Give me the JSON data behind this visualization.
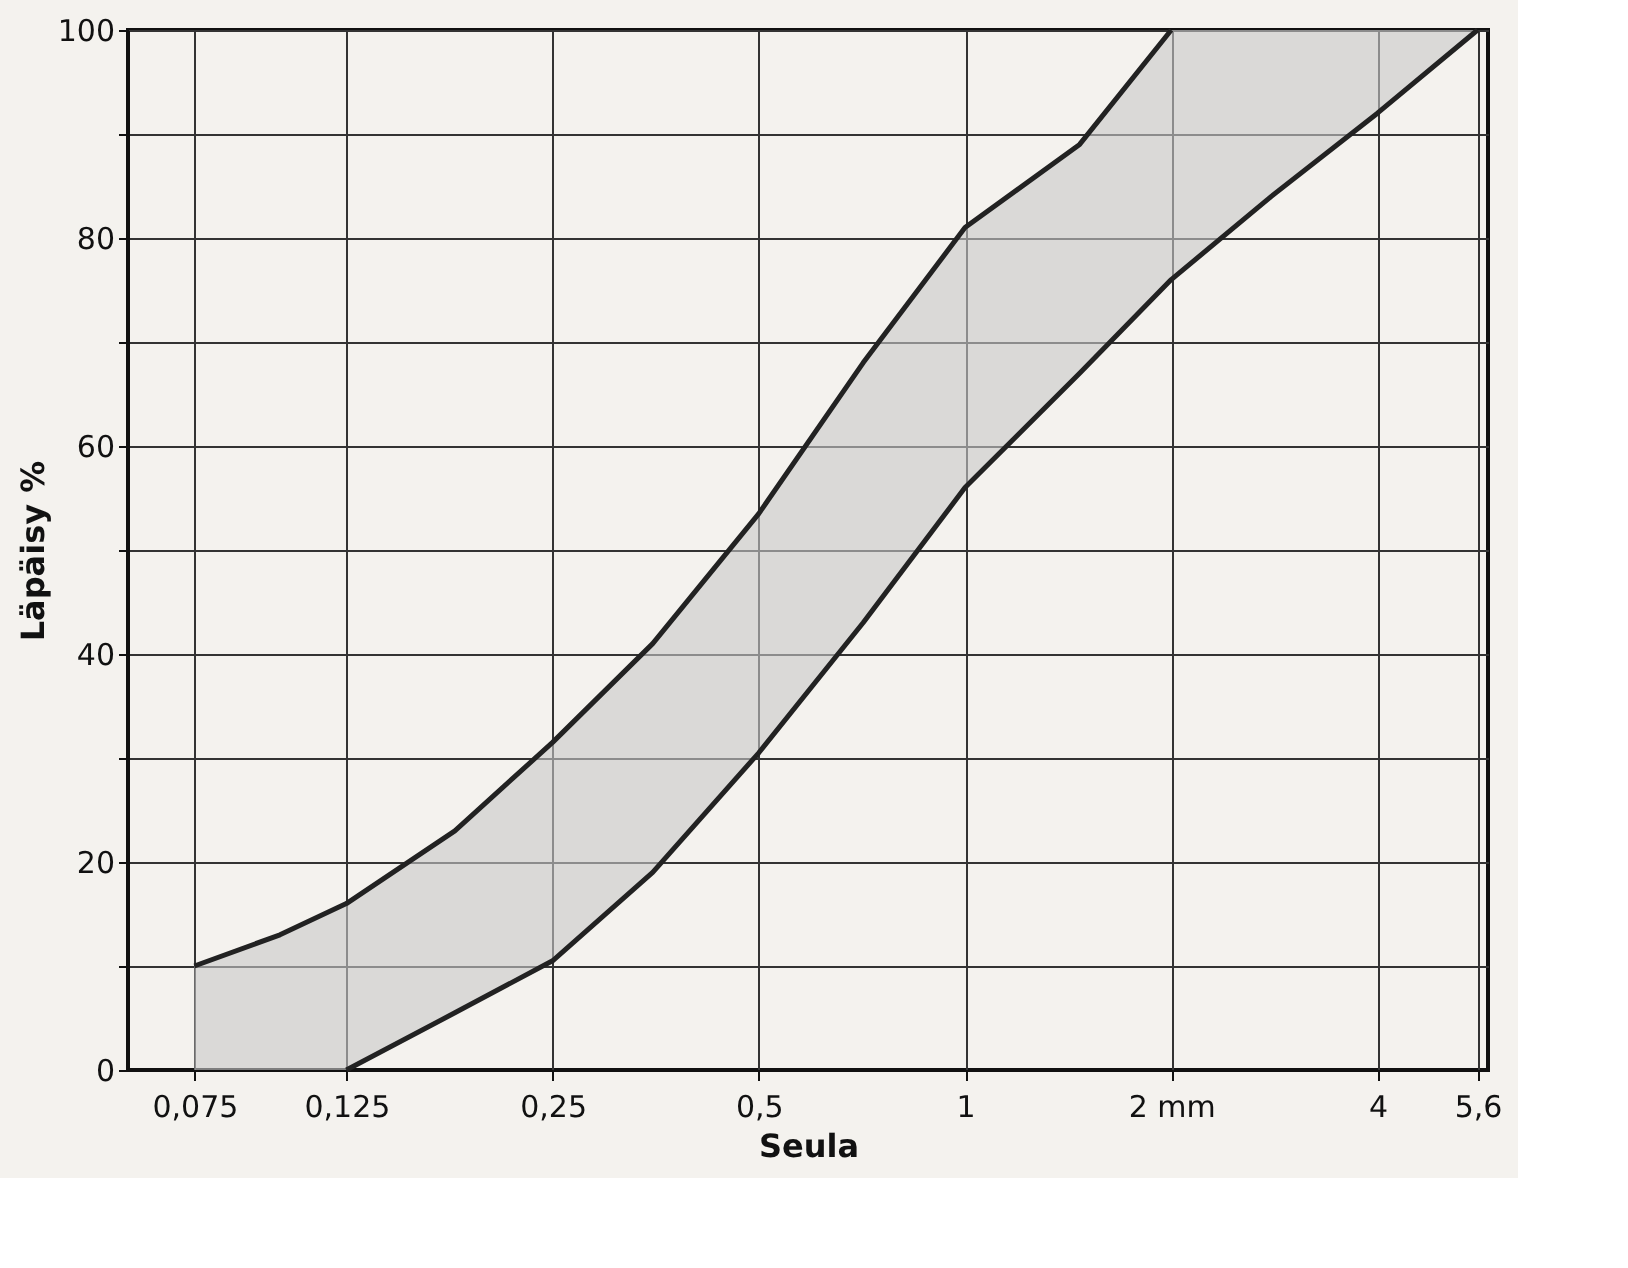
{
  "chart_data": {
    "type": "line",
    "xlabel": "Seula",
    "ylabel": "Läpäisy %",
    "log": "x",
    "grid": true,
    "marker": "none",
    "line_style": "solid",
    "xlim": [
      0.06,
      5.8
    ],
    "ylim": [
      0,
      100
    ],
    "xticks": [
      {
        "value": 0.075,
        "label": "0,075"
      },
      {
        "value": 0.125,
        "label": "0,125"
      },
      {
        "value": 0.25,
        "label": "0,25"
      },
      {
        "value": 0.5,
        "label": "0,5"
      },
      1,
      {
        "value": 2,
        "label": "2 mm"
      },
      4,
      {
        "value": 5.6,
        "label": "5,6"
      }
    ],
    "yticks": [
      0,
      {
        "value": 10,
        "label": null
      },
      20,
      {
        "value": 30,
        "label": null
      },
      40,
      {
        "value": 50,
        "label": null
      },
      60,
      {
        "value": 70,
        "label": null
      },
      80,
      {
        "value": 90,
        "label": null
      },
      100
    ],
    "x": [
      0.075,
      0.1,
      0.125,
      0.18,
      0.25,
      0.35,
      0.5,
      0.71,
      1,
      1.47,
      2,
      2.8,
      4,
      5.6
    ],
    "series": [
      {
        "type": "area",
        "color": "#c8c8c8",
        "values": [
          null,
          null,
          null,
          null,
          null,
          null,
          null,
          null,
          null,
          null,
          null,
          null,
          null,
          null
        ],
        "lower": [
          0,
          0,
          0,
          5.5,
          10.5,
          19,
          30.5,
          43,
          56,
          67,
          76,
          84,
          92,
          100
        ],
        "upper": [
          10,
          13,
          16,
          23,
          31.5,
          41,
          53.5,
          68,
          81,
          89,
          100,
          100,
          100,
          100
        ]
      },
      {
        "color": "#222222",
        "values": [
          10,
          13,
          16,
          23,
          31.5,
          41,
          53.5,
          68,
          81,
          89,
          100,
          null,
          null,
          null
        ]
      },
      {
        "color": "#222222",
        "values": [
          null,
          null,
          0,
          5.5,
          10.5,
          19,
          30.5,
          43,
          56,
          67,
          76,
          84,
          92,
          100
        ]
      }
    ]
  }
}
